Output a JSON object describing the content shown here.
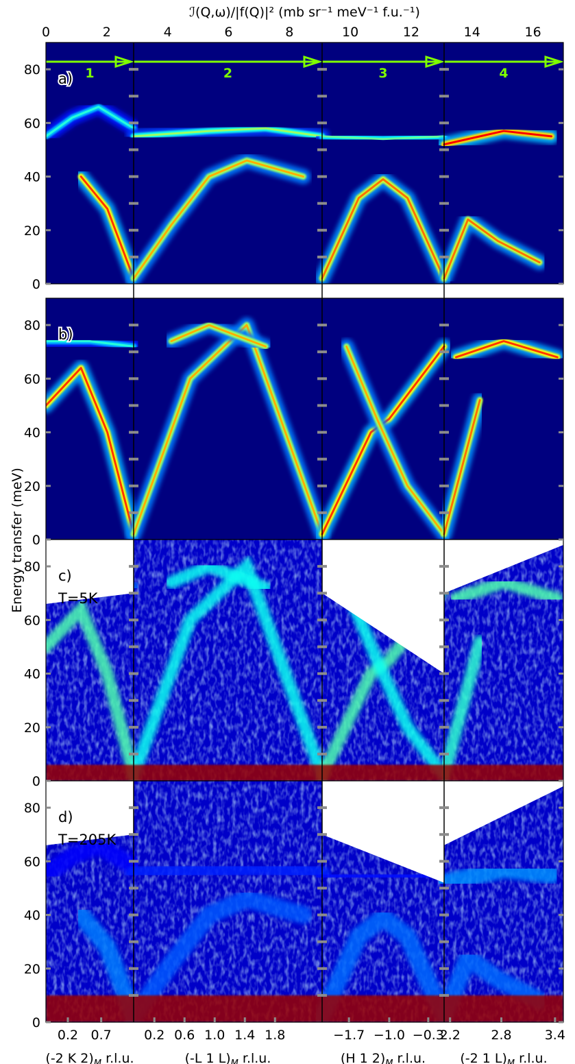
{
  "chart_data": {
    "type": "heatmap",
    "colorbar": {
      "label": "ℐ(Q,ω)/|f(Q)|² (mb sr⁻¹ meV⁻¹ f.u.⁻¹)",
      "range": [
        0,
        17
      ],
      "ticks": [
        0,
        2,
        4,
        6,
        8,
        10,
        12,
        14,
        16
      ],
      "colormap": "jet",
      "colors": [
        "#00007f",
        "#0000ff",
        "#0080ff",
        "#00ffff",
        "#80ff80",
        "#ffff00",
        "#ff8000",
        "#ff0000",
        "#7f0000"
      ]
    },
    "ylabel": "Energy transfer (meV)",
    "ylim": [
      0,
      90
    ],
    "yticks": [
      0,
      20,
      40,
      60,
      80
    ],
    "segments": [
      {
        "id": "1",
        "xlabel": "(-2 K 2)",
        "sub": "M",
        "unit": " r.l.u.",
        "ticks": [
          "0.2",
          "0.7"
        ],
        "tick_pos": [
          0.25,
          0.63
        ]
      },
      {
        "id": "2",
        "xlabel": "(-L 1 L)",
        "sub": "M",
        "unit": " r.l.u.",
        "ticks": [
          "0.2",
          "0.6",
          "1.0",
          "1.4",
          "1.8"
        ],
        "tick_pos": [
          0.11,
          0.27,
          0.43,
          0.59,
          0.75
        ]
      },
      {
        "id": "3",
        "xlabel": "(H 1 2)",
        "sub": "M",
        "unit": " r.l.u.",
        "ticks": [
          "−1.7",
          "−1.0",
          "−0.3"
        ],
        "tick_pos": [
          0.22,
          0.55,
          0.87
        ]
      },
      {
        "id": "4",
        "xlabel": "(-2 1 L)",
        "sub": "M",
        "unit": " r.l.u.",
        "ticks": [
          "2.2",
          "2.8",
          "3.4"
        ],
        "tick_pos": [
          0.05,
          0.48,
          0.93
        ]
      }
    ],
    "panels": [
      {
        "label": "a)",
        "temperature": "",
        "kind": "model"
      },
      {
        "label": "b)",
        "temperature": "",
        "kind": "model"
      },
      {
        "label": "c)",
        "temperature": "T=5K",
        "kind": "data"
      },
      {
        "label": "d)",
        "temperature": "T=205K",
        "kind": "data"
      }
    ],
    "dispersion_a": [
      {
        "segment": "1",
        "points": [
          [
            0.0,
            55
          ],
          [
            0.3,
            62
          ],
          [
            0.6,
            66
          ],
          [
            1.0,
            58
          ]
        ],
        "peak": 7
      },
      {
        "segment": "1",
        "points": [
          [
            0.4,
            40
          ],
          [
            0.7,
            28
          ],
          [
            1.0,
            2
          ]
        ],
        "peak": 14
      },
      {
        "segment": "2",
        "points": [
          [
            0.0,
            2
          ],
          [
            0.2,
            22
          ],
          [
            0.4,
            40
          ],
          [
            0.6,
            46
          ],
          [
            0.9,
            40
          ]
        ],
        "peak": 12
      },
      {
        "segment": "2",
        "points": [
          [
            0.0,
            55
          ],
          [
            0.4,
            57
          ],
          [
            0.7,
            58
          ],
          [
            1.0,
            55
          ]
        ],
        "peak": 9
      },
      {
        "segment": "3",
        "points": [
          [
            0.0,
            2
          ],
          [
            0.3,
            32
          ],
          [
            0.5,
            39
          ],
          [
            0.7,
            32
          ],
          [
            1.0,
            2
          ]
        ],
        "peak": 13
      },
      {
        "segment": "3",
        "points": [
          [
            0.0,
            55
          ],
          [
            0.5,
            54
          ],
          [
            1.0,
            55
          ]
        ],
        "peak": 8
      },
      {
        "segment": "4",
        "points": [
          [
            0.0,
            2
          ],
          [
            0.2,
            24
          ],
          [
            0.45,
            16
          ],
          [
            0.8,
            8
          ]
        ],
        "peak": 13
      },
      {
        "segment": "4",
        "points": [
          [
            0.0,
            52
          ],
          [
            0.5,
            57
          ],
          [
            0.9,
            55
          ]
        ],
        "peak": 15
      }
    ],
    "dispersion_b": [
      {
        "segment": "1",
        "points": [
          [
            0.0,
            50
          ],
          [
            0.4,
            64
          ],
          [
            0.7,
            40
          ],
          [
            1.0,
            2
          ]
        ],
        "peak": 14
      },
      {
        "segment": "1",
        "points": [
          [
            0.0,
            74
          ],
          [
            0.5,
            74
          ],
          [
            1.0,
            72
          ]
        ],
        "peak": 7
      },
      {
        "segment": "2",
        "points": [
          [
            0.0,
            2
          ],
          [
            0.3,
            60
          ],
          [
            0.6,
            80
          ],
          [
            1.0,
            2
          ]
        ],
        "peak": 12
      },
      {
        "segment": "2",
        "points": [
          [
            0.2,
            74
          ],
          [
            0.4,
            80
          ],
          [
            0.7,
            72
          ]
        ],
        "peak": 12
      },
      {
        "segment": "3",
        "points": [
          [
            0.0,
            2
          ],
          [
            0.4,
            40
          ],
          [
            0.55,
            45
          ],
          [
            0.8,
            60
          ],
          [
            1.0,
            72
          ]
        ],
        "peak": 14
      },
      {
        "segment": "3",
        "points": [
          [
            0.2,
            72
          ],
          [
            0.45,
            45
          ],
          [
            0.7,
            20
          ],
          [
            1.0,
            2
          ]
        ],
        "peak": 12
      },
      {
        "segment": "4",
        "points": [
          [
            0.0,
            2
          ],
          [
            0.3,
            52
          ]
        ],
        "peak": 13
      },
      {
        "segment": "4",
        "points": [
          [
            0.1,
            68
          ],
          [
            0.5,
            74
          ],
          [
            0.95,
            68
          ]
        ],
        "peak": 14
      }
    ]
  }
}
